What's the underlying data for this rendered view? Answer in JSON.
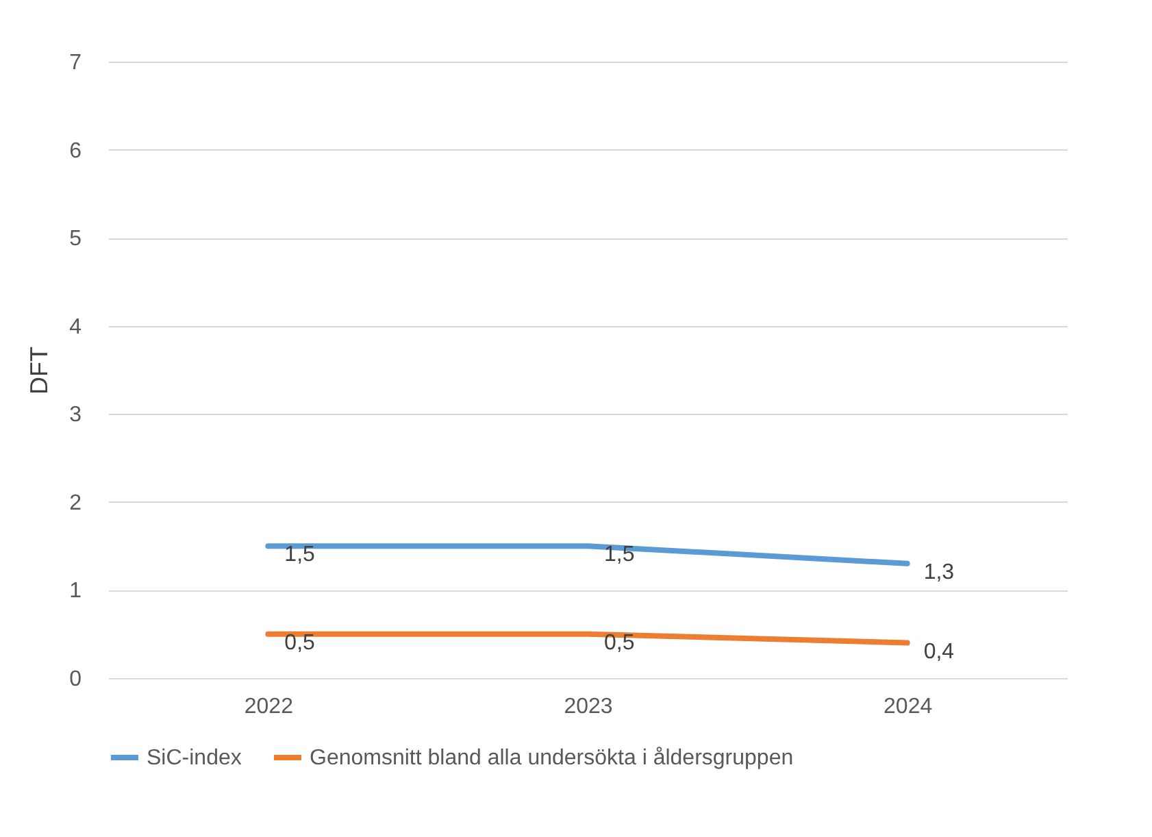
{
  "chart_data": {
    "type": "line",
    "ylabel": "DFT",
    "categories": [
      "2022",
      "2023",
      "2024"
    ],
    "series": [
      {
        "name": "SiC-index",
        "color": "#5b9bd5",
        "values": [
          1.5,
          1.5,
          1.3
        ],
        "value_labels": [
          "1,5",
          "1,5",
          "1,3"
        ]
      },
      {
        "name": "Genomsnitt bland alla undersökta i åldersgruppen",
        "color": "#ed7d31",
        "values": [
          0.5,
          0.5,
          0.4
        ],
        "value_labels": [
          "0,5",
          "0,5",
          "0,4"
        ]
      }
    ],
    "ylim": [
      0,
      7
    ],
    "yticks": [
      0,
      1,
      2,
      3,
      4,
      5,
      6,
      7
    ],
    "grid": "y",
    "legend": "bottom",
    "marker": "none",
    "line_style": "solid"
  }
}
